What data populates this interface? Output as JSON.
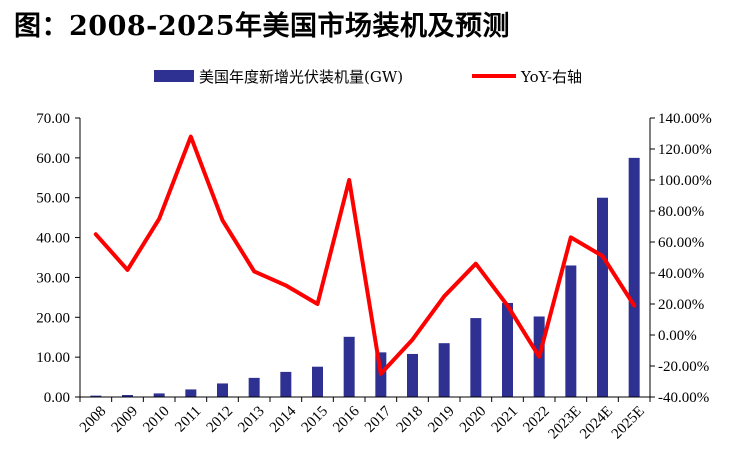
{
  "page": {
    "title": "图：2008-2025年美国市场装机及预测"
  },
  "chart_data": {
    "type": "bar",
    "title": "图：2008-2025年美国市场装机及预测",
    "categories": [
      "2008",
      "2009",
      "2010",
      "2011",
      "2012",
      "2013",
      "2014",
      "2015",
      "2016",
      "2017",
      "2018",
      "2019",
      "2020",
      "2021",
      "2022",
      "2023E",
      "2024E",
      "2025E"
    ],
    "series": [
      {
        "name": "美国年度新增光伏装机量(GW)",
        "type": "bar",
        "axis": "left",
        "color": "#2e3192",
        "values": [
          0.34,
          0.5,
          0.9,
          1.9,
          3.4,
          4.8,
          6.3,
          7.6,
          15.1,
          11.2,
          10.8,
          13.5,
          19.8,
          23.6,
          20.2,
          33,
          50,
          60
        ]
      },
      {
        "name": "YoY-右轴",
        "type": "line",
        "axis": "right",
        "color": "#ff0000",
        "values": [
          65,
          42,
          75,
          128,
          74,
          41,
          32,
          20,
          100,
          -25,
          -3,
          25,
          46,
          19,
          -14,
          63,
          51,
          19
        ]
      }
    ],
    "left_axis": {
      "min": 0,
      "max": 70,
      "step": 10,
      "tick_labels": [
        "0.00",
        "10.00",
        "20.00",
        "30.00",
        "40.00",
        "50.00",
        "60.00",
        "70.00"
      ]
    },
    "right_axis": {
      "min": -40,
      "max": 140,
      "step": 20,
      "tick_labels": [
        "-40.00%",
        "-20.00%",
        "0.00%",
        "20.00%",
        "40.00%",
        "60.00%",
        "80.00%",
        "100.00%",
        "120.00%",
        "140.00%"
      ]
    },
    "legend": {
      "position": "top"
    },
    "grid": false
  }
}
